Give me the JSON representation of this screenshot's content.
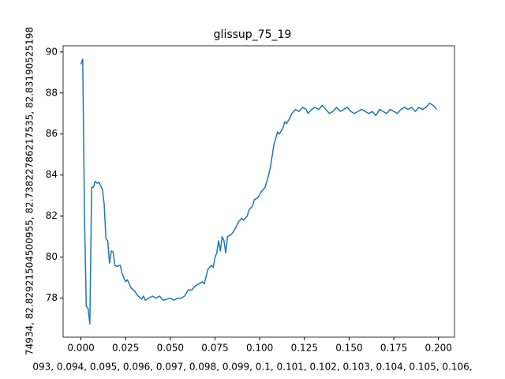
{
  "chart_data": {
    "type": "line",
    "title": "glissup_75_19",
    "xlabel": "093, 0.094, 0.095, 0.096, 0.097, 0.098, 0.099, 0.1, 0.101, 0.102, 0.103, 0.104, 0.105, 0.106,",
    "ylabel": "74934, 82.82921504500955, 82.73822786217535, 82.83190525198",
    "x": [
      0.0,
      0.001,
      0.002,
      0.003,
      0.004,
      0.005,
      0.006,
      0.007,
      0.008,
      0.009,
      0.01,
      0.011,
      0.012,
      0.013,
      0.014,
      0.015,
      0.016,
      0.017,
      0.018,
      0.019,
      0.02,
      0.022,
      0.023,
      0.025,
      0.026,
      0.028,
      0.03,
      0.032,
      0.034,
      0.035,
      0.036,
      0.038,
      0.04,
      0.042,
      0.044,
      0.046,
      0.048,
      0.05,
      0.052,
      0.054,
      0.056,
      0.058,
      0.06,
      0.062,
      0.064,
      0.066,
      0.068,
      0.069,
      0.071,
      0.073,
      0.074,
      0.075,
      0.076,
      0.077,
      0.078,
      0.079,
      0.08,
      0.081,
      0.082,
      0.084,
      0.085,
      0.087,
      0.088,
      0.09,
      0.091,
      0.093,
      0.094,
      0.096,
      0.097,
      0.099,
      0.101,
      0.103,
      0.105,
      0.106,
      0.108,
      0.109,
      0.11,
      0.111,
      0.113,
      0.114,
      0.115,
      0.117,
      0.118,
      0.12,
      0.122,
      0.124,
      0.126,
      0.127,
      0.129,
      0.131,
      0.133,
      0.135,
      0.137,
      0.139,
      0.141,
      0.143,
      0.145,
      0.147,
      0.149,
      0.151,
      0.153,
      0.155,
      0.157,
      0.159,
      0.161,
      0.163,
      0.165,
      0.167,
      0.169,
      0.171,
      0.173,
      0.175,
      0.177,
      0.179,
      0.181,
      0.183,
      0.185,
      0.187,
      0.189,
      0.191,
      0.193,
      0.195,
      0.197,
      0.199
    ],
    "series": [
      {
        "color": "#1f77b4",
        "values": [
          89.4,
          89.65,
          82.0,
          77.6,
          77.5,
          76.75,
          83.4,
          83.4,
          83.7,
          83.6,
          83.65,
          83.5,
          83.3,
          82.6,
          80.9,
          80.8,
          79.7,
          80.3,
          80.25,
          79.6,
          79.55,
          79.6,
          79.2,
          78.8,
          78.9,
          78.5,
          78.35,
          78.1,
          77.95,
          78.1,
          77.9,
          78.0,
          78.1,
          78.0,
          78.1,
          77.9,
          77.95,
          78.0,
          77.9,
          78.0,
          78.0,
          78.1,
          78.4,
          78.4,
          78.6,
          78.7,
          78.8,
          78.7,
          79.4,
          79.6,
          79.5,
          80.0,
          80.2,
          80.8,
          80.3,
          81.0,
          80.8,
          80.2,
          81.0,
          81.1,
          81.2,
          81.5,
          81.7,
          81.9,
          81.8,
          82.0,
          82.3,
          82.5,
          82.8,
          82.9,
          83.2,
          83.4,
          84.0,
          84.4,
          85.5,
          85.8,
          86.1,
          86.0,
          86.3,
          86.6,
          86.5,
          86.8,
          87.0,
          87.2,
          87.1,
          87.3,
          87.2,
          87.0,
          87.2,
          87.3,
          87.2,
          87.4,
          87.2,
          87.0,
          87.1,
          87.3,
          87.1,
          87.2,
          87.3,
          87.1,
          87.0,
          87.1,
          87.2,
          87.1,
          87.0,
          87.1,
          86.9,
          87.2,
          87.1,
          87.0,
          87.2,
          87.1,
          87.0,
          87.2,
          87.3,
          87.2,
          87.3,
          87.1,
          87.3,
          87.2,
          87.3,
          87.5,
          87.4,
          87.2
        ]
      }
    ],
    "xlim": [
      -0.00995,
      0.20895
    ],
    "ylim": [
      76.1,
      90.3
    ],
    "xticks": [
      {
        "value": 0,
        "label": "0.000"
      },
      {
        "value": 0.025,
        "label": "0.025"
      },
      {
        "value": 0.05,
        "label": "0.050"
      },
      {
        "value": 0.075,
        "label": "0.075"
      },
      {
        "value": 0.1,
        "label": "0.100"
      },
      {
        "value": 0.125,
        "label": "0.125"
      },
      {
        "value": 0.15,
        "label": "0.150"
      },
      {
        "value": 0.175,
        "label": "0.175"
      },
      {
        "value": 0.2,
        "label": "0.200"
      }
    ],
    "yticks": [
      78,
      80,
      82,
      84,
      86,
      88,
      90
    ]
  }
}
